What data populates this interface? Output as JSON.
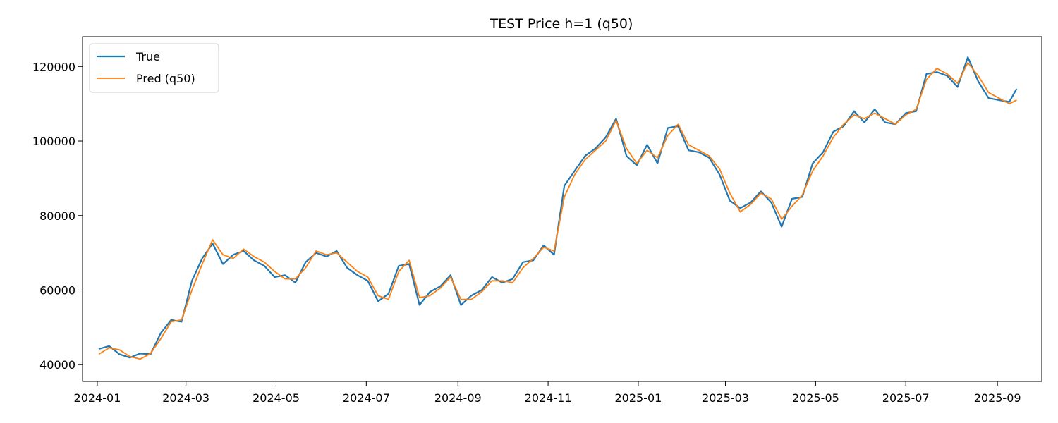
{
  "chart_data": {
    "type": "line",
    "title": "TEST Price h=1 (q50)",
    "xlabel": "",
    "ylabel": "",
    "x_range": [
      "2023-12-22",
      "2025-10-01"
    ],
    "ylim": [
      35500,
      128000
    ],
    "x_ticks": [
      "2024-01-01",
      "2024-03-01",
      "2024-05-01",
      "2024-07-01",
      "2024-09-01",
      "2024-11-01",
      "2025-01-01",
      "2025-03-01",
      "2025-05-01",
      "2025-07-01",
      "2025-09-01"
    ],
    "x_tick_labels": [
      "2024-01",
      "2024-03",
      "2024-05",
      "2024-07",
      "2024-09",
      "2024-11",
      "2025-01",
      "2025-03",
      "2025-05",
      "2025-07",
      "2025-09"
    ],
    "y_ticks": [
      40000,
      60000,
      80000,
      100000,
      120000
    ],
    "y_tick_labels": [
      "40000",
      "60000",
      "80000",
      "100000",
      "120000"
    ],
    "grid": false,
    "legend_position": "top-left",
    "series": [
      {
        "name": "True",
        "color": "#1f77b4",
        "x": [
          "2024-01-02",
          "2024-01-09",
          "2024-01-16",
          "2024-01-23",
          "2024-01-30",
          "2024-02-06",
          "2024-02-13",
          "2024-02-20",
          "2024-02-27",
          "2024-03-05",
          "2024-03-12",
          "2024-03-19",
          "2024-03-26",
          "2024-04-02",
          "2024-04-09",
          "2024-04-16",
          "2024-04-23",
          "2024-04-30",
          "2024-05-07",
          "2024-05-14",
          "2024-05-21",
          "2024-05-28",
          "2024-06-04",
          "2024-06-11",
          "2024-06-18",
          "2024-06-25",
          "2024-07-02",
          "2024-07-09",
          "2024-07-16",
          "2024-07-23",
          "2024-07-30",
          "2024-08-06",
          "2024-08-13",
          "2024-08-20",
          "2024-08-27",
          "2024-09-03",
          "2024-09-10",
          "2024-09-17",
          "2024-09-24",
          "2024-10-01",
          "2024-10-08",
          "2024-10-15",
          "2024-10-22",
          "2024-10-29",
          "2024-11-05",
          "2024-11-12",
          "2024-11-19",
          "2024-11-26",
          "2024-12-03",
          "2024-12-10",
          "2024-12-17",
          "2024-12-24",
          "2024-12-31",
          "2025-01-07",
          "2025-01-14",
          "2025-01-21",
          "2025-01-28",
          "2025-02-04",
          "2025-02-11",
          "2025-02-18",
          "2025-02-25",
          "2025-03-04",
          "2025-03-11",
          "2025-03-18",
          "2025-03-25",
          "2025-04-01",
          "2025-04-08",
          "2025-04-15",
          "2025-04-22",
          "2025-04-29",
          "2025-05-06",
          "2025-05-13",
          "2025-05-20",
          "2025-05-27",
          "2025-06-03",
          "2025-06-10",
          "2025-06-17",
          "2025-06-24",
          "2025-07-01",
          "2025-07-08",
          "2025-07-15",
          "2025-07-22",
          "2025-07-29",
          "2025-08-05",
          "2025-08-12",
          "2025-08-19",
          "2025-08-26",
          "2025-09-02",
          "2025-09-09",
          "2025-09-14"
        ],
        "values": [
          44200,
          45000,
          42800,
          41900,
          43000,
          42800,
          48500,
          52000,
          51500,
          62500,
          68500,
          72500,
          67000,
          69500,
          70500,
          68000,
          66500,
          63500,
          64000,
          62000,
          67500,
          70000,
          69000,
          70500,
          66000,
          64000,
          62500,
          57000,
          59000,
          66500,
          67000,
          56000,
          59500,
          61000,
          64000,
          56000,
          58500,
          60000,
          63500,
          62000,
          63000,
          67500,
          68000,
          72000,
          69500,
          88000,
          92000,
          96000,
          98000,
          101000,
          106000,
          96000,
          93500,
          99000,
          94000,
          103500,
          104000,
          97500,
          97000,
          95500,
          91000,
          84000,
          82000,
          83500,
          86500,
          83500,
          77000,
          84500,
          85000,
          94000,
          97000,
          102500,
          104000,
          108000,
          105000,
          108500,
          105000,
          104500,
          107500,
          108000,
          118000,
          118500,
          117500,
          114500,
          122500,
          116000,
          111500,
          111000,
          110500,
          114000
        ]
      },
      {
        "name": "Pred (q50)",
        "color": "#ff7f0e",
        "x": [
          "2024-01-02",
          "2024-01-09",
          "2024-01-16",
          "2024-01-23",
          "2024-01-30",
          "2024-02-06",
          "2024-02-13",
          "2024-02-20",
          "2024-02-27",
          "2024-03-05",
          "2024-03-12",
          "2024-03-19",
          "2024-03-26",
          "2024-04-02",
          "2024-04-09",
          "2024-04-16",
          "2024-04-23",
          "2024-04-30",
          "2024-05-07",
          "2024-05-14",
          "2024-05-21",
          "2024-05-28",
          "2024-06-04",
          "2024-06-11",
          "2024-06-18",
          "2024-06-25",
          "2024-07-02",
          "2024-07-09",
          "2024-07-16",
          "2024-07-23",
          "2024-07-30",
          "2024-08-06",
          "2024-08-13",
          "2024-08-20",
          "2024-08-27",
          "2024-09-03",
          "2024-09-10",
          "2024-09-17",
          "2024-09-24",
          "2024-10-01",
          "2024-10-08",
          "2024-10-15",
          "2024-10-22",
          "2024-10-29",
          "2024-11-05",
          "2024-11-12",
          "2024-11-19",
          "2024-11-26",
          "2024-12-03",
          "2024-12-10",
          "2024-12-17",
          "2024-12-24",
          "2024-12-31",
          "2025-01-07",
          "2025-01-14",
          "2025-01-21",
          "2025-01-28",
          "2025-02-04",
          "2025-02-11",
          "2025-02-18",
          "2025-02-25",
          "2025-03-04",
          "2025-03-11",
          "2025-03-18",
          "2025-03-25",
          "2025-04-01",
          "2025-04-08",
          "2025-04-15",
          "2025-04-22",
          "2025-04-29",
          "2025-05-06",
          "2025-05-13",
          "2025-05-20",
          "2025-05-27",
          "2025-06-03",
          "2025-06-10",
          "2025-06-17",
          "2025-06-24",
          "2025-07-01",
          "2025-07-08",
          "2025-07-15",
          "2025-07-22",
          "2025-07-29",
          "2025-08-05",
          "2025-08-12",
          "2025-08-19",
          "2025-08-26",
          "2025-09-02",
          "2025-09-09",
          "2025-09-14"
        ],
        "values": [
          42800,
          44500,
          44000,
          42200,
          41500,
          43000,
          47000,
          51500,
          52000,
          60000,
          67000,
          73500,
          69500,
          68500,
          71000,
          69000,
          67500,
          65000,
          63000,
          63000,
          66000,
          70500,
          69500,
          70000,
          67500,
          65000,
          63500,
          58500,
          57500,
          65000,
          68000,
          58000,
          58500,
          60500,
          63500,
          57500,
          57500,
          59500,
          62500,
          62500,
          62000,
          66000,
          68500,
          71500,
          70500,
          85000,
          91000,
          95000,
          97500,
          100000,
          105500,
          98000,
          94000,
          97500,
          95500,
          101500,
          104500,
          99000,
          97500,
          96000,
          92500,
          86000,
          81000,
          83000,
          86000,
          84500,
          79000,
          82500,
          85500,
          92000,
          96000,
          101000,
          104500,
          107000,
          106000,
          107500,
          106000,
          104500,
          107000,
          108500,
          116500,
          119500,
          118000,
          115500,
          121000,
          117500,
          113000,
          111500,
          110000,
          111000
        ]
      }
    ]
  }
}
